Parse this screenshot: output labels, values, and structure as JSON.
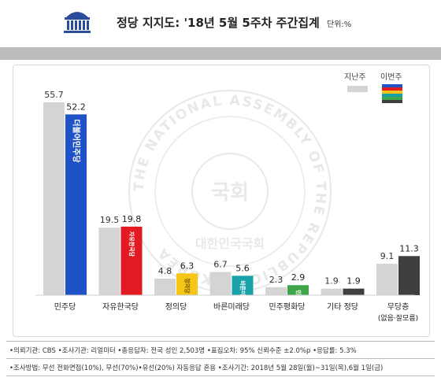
{
  "header": {
    "title": "정당 지지도: '18년 5월 5주차 주간집계",
    "unit": "단위:%"
  },
  "watermark": {
    "ring_text": "THE NATIONAL ASSEMBLY OF THE REPUBLIC OF KOREA",
    "center_text": "국회",
    "bottom_text": "대한민국국회"
  },
  "legend": {
    "previous": "지난주",
    "current": "이번주",
    "previous_color": "#d4d4d4",
    "current_colors": [
      "#1f52c6",
      "#e21b22",
      "#f5c518",
      "#1aa1a8",
      "#3ea648",
      "#3f3f3f"
    ]
  },
  "chart_data": {
    "type": "bar",
    "title": "정당 지지도: '18년 5월 5주차 주간집계",
    "unit": "단위:%",
    "categories": [
      "민주당",
      "자유한국당",
      "정의당",
      "바른미래당",
      "민주평화당",
      "기타 정당",
      "무당층"
    ],
    "category_sublabels": [
      "",
      "",
      "",
      "",
      "",
      "",
      "(없음·잘모름)"
    ],
    "series": [
      {
        "name": "지난주",
        "values": [
          55.7,
          19.5,
          4.8,
          6.7,
          2.3,
          1.9,
          9.1
        ],
        "color": "#d4d4d4"
      },
      {
        "name": "이번주",
        "values": [
          52.2,
          19.8,
          6.3,
          5.6,
          2.9,
          1.9,
          11.3
        ],
        "colors": [
          "#1f52c6",
          "#e21b22",
          "#f5c518",
          "#1aa1a8",
          "#3ea648",
          "#3f3f3f",
          "#3f3f3f"
        ]
      }
    ],
    "value_labels": {
      "previous": [
        "55.7",
        "19.5",
        "4.8",
        "6.7",
        "2.3",
        "1.9",
        "9.1"
      ],
      "current": [
        "52.2",
        "19.8",
        "6.3",
        "5.6",
        "2.9",
        "1.9",
        "11.3"
      ]
    },
    "bar_logos": [
      "더불어민주당",
      "자유한국당",
      "정의당",
      "바른미래당",
      "민주평화당",
      "",
      ""
    ],
    "ylim": [
      0,
      60
    ],
    "grid": false,
    "legend_position": "top-right"
  },
  "footer": {
    "line1": "•의뢰기관: CBS  •조사기관: 리얼미터  •총응답자: 전국 성인 2,503명  •표집오차: 95% 신뢰수준 ±2.0%p  •응답률: 5.3%",
    "line2": "•조사방법: 무선 전화면접(10%), 무선(70%)•유선(20%) 자동응답 혼용  •조사기간: 2018년 5월 28일(월)~31일(목),6월 1일(금)"
  }
}
